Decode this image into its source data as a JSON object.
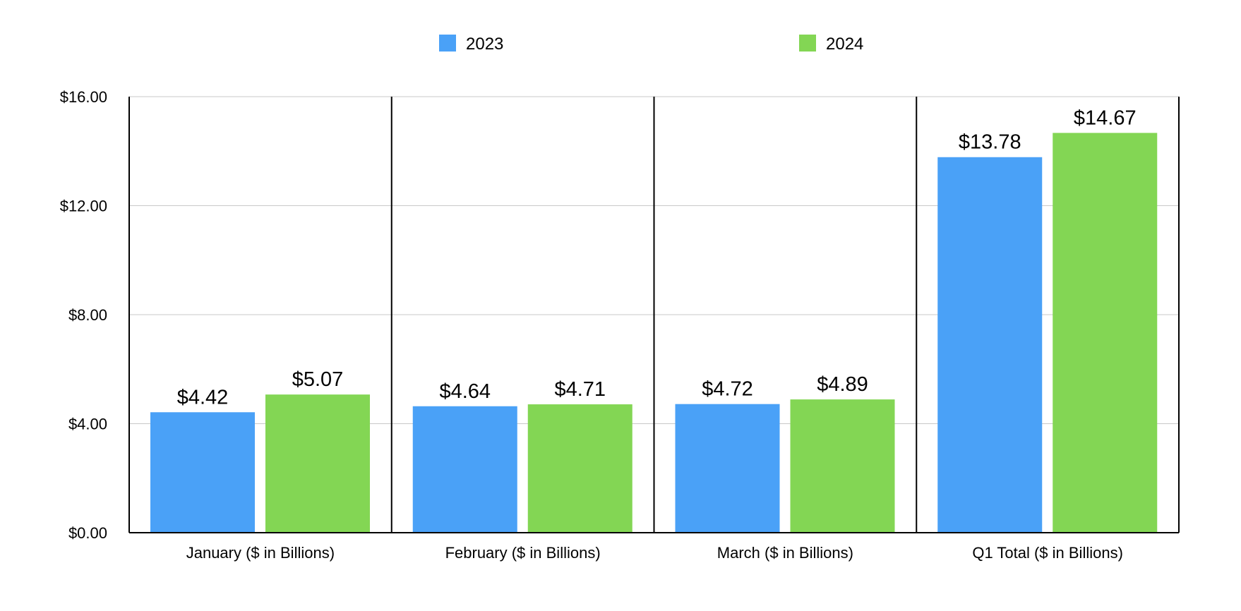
{
  "chart_data": {
    "type": "bar",
    "categories": [
      "January ($ in Billions)",
      "February ($ in Billions)",
      "March ($ in Billions)",
      "Q1 Total ($ in Billions)"
    ],
    "series": [
      {
        "name": "2023",
        "values": [
          4.42,
          4.64,
          4.72,
          13.78
        ],
        "color": "#4aa1f7"
      },
      {
        "name": "2024",
        "values": [
          5.07,
          4.71,
          4.89,
          14.67
        ],
        "color": "#83d654"
      }
    ],
    "data_labels": [
      [
        "$4.42",
        "$4.64",
        "$4.72",
        "$13.78"
      ],
      [
        "$5.07",
        "$4.71",
        "$4.89",
        "$14.67"
      ]
    ],
    "y_ticks": [
      0,
      4,
      8,
      12,
      16
    ],
    "y_tick_labels": [
      "$0.00",
      "$4.00",
      "$8.00",
      "$12.00",
      "$16.00"
    ],
    "ylim": [
      0,
      16
    ],
    "grid": true,
    "legend_position": "top-center",
    "title": "",
    "xlabel": "",
    "ylabel": ""
  }
}
